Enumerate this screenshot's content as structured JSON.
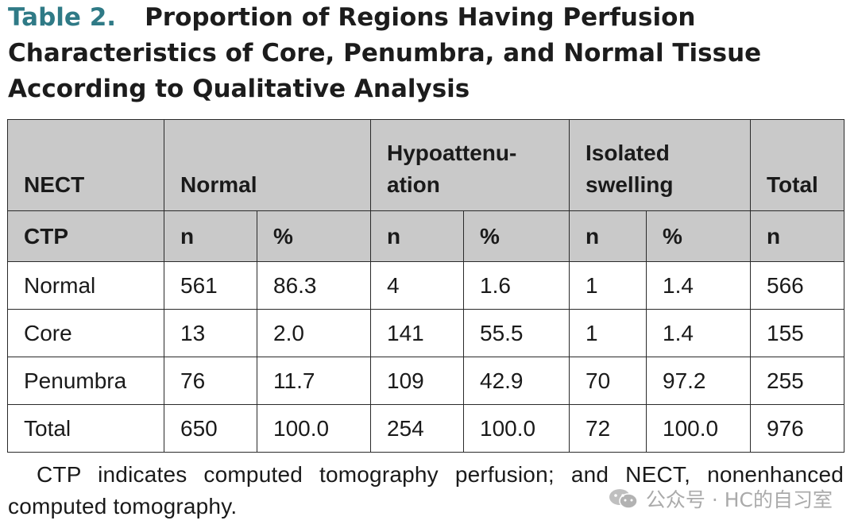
{
  "title": {
    "label": "Table 2.",
    "text": "Proportion of Regions Having Perfusion Characteristics of Core, Penumbra, and Normal Tissue According to Qualitative Analysis"
  },
  "table": {
    "header_row1": {
      "nect": "NECT",
      "normal": "Normal",
      "hypoattenuation": "Hypoattenu-ation",
      "isolated_swelling": "Isolated swelling",
      "total": "Total"
    },
    "header_row2": [
      "CTP",
      "n",
      "%",
      "n",
      "%",
      "n",
      "%",
      "n"
    ],
    "rows": [
      {
        "label": "Normal",
        "cells": [
          "561",
          "86.3",
          "4",
          "1.6",
          "1",
          "1.4",
          "566"
        ]
      },
      {
        "label": "Core",
        "cells": [
          "13",
          "2.0",
          "141",
          "55.5",
          "1",
          "1.4",
          "155"
        ]
      },
      {
        "label": "Penumbra",
        "cells": [
          "76",
          "11.7",
          "109",
          "42.9",
          "70",
          "97.2",
          "255"
        ]
      },
      {
        "label": "Total",
        "cells": [
          "650",
          "100.0",
          "254",
          "100.0",
          "72",
          "100.0",
          "976"
        ]
      }
    ]
  },
  "footnote": "CTP indicates computed tomography perfusion; and NECT, nonenhanced computed tomography.",
  "watermark": {
    "icon": "wechat-icon",
    "text": "公众号 · HC的自习室"
  },
  "colors": {
    "title_label": "#2f7a86",
    "header_bg": "#c9c9c9",
    "watermark": "#9c9c9c"
  }
}
